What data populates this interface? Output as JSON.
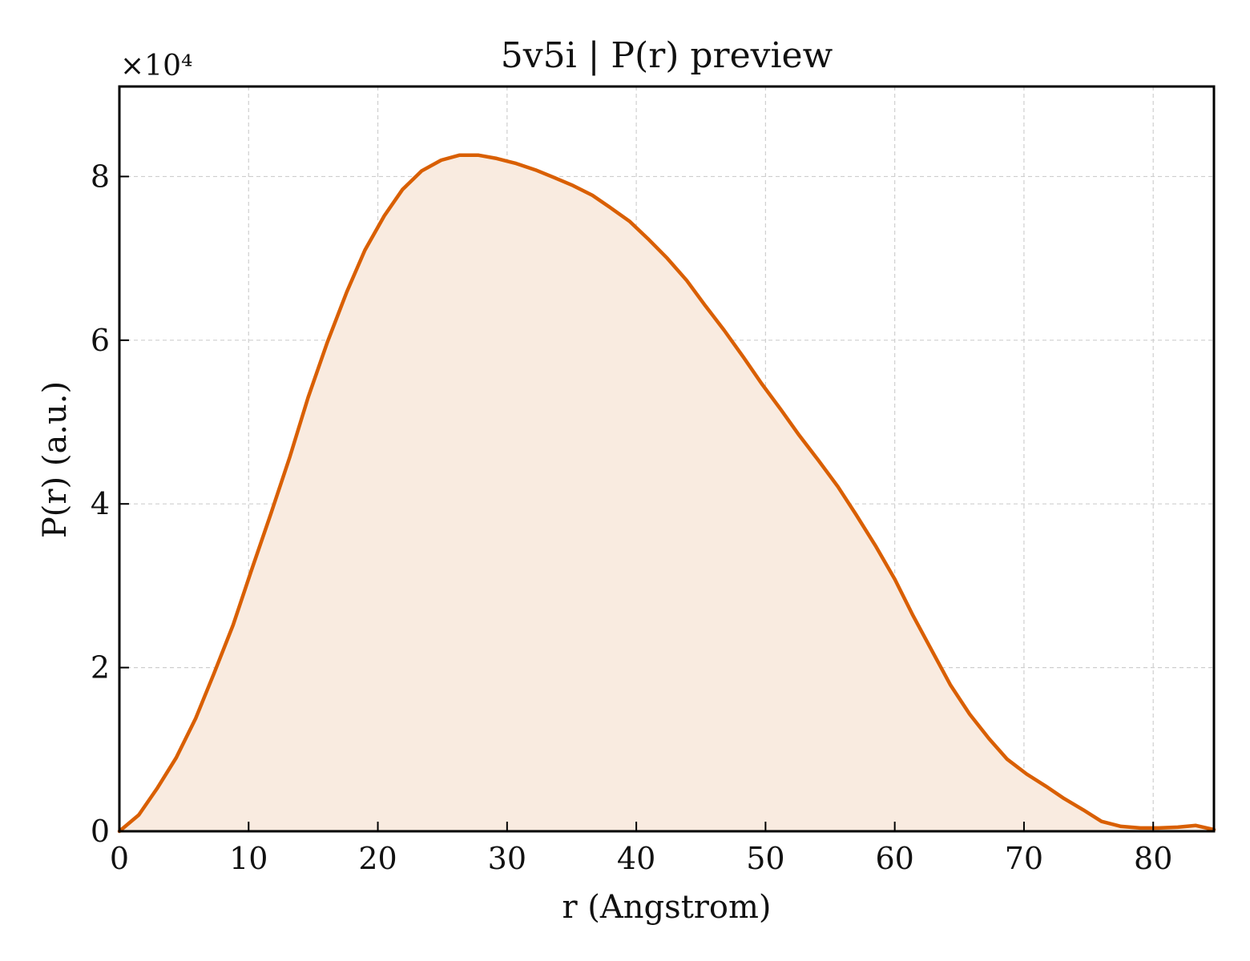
{
  "chart_data": {
    "type": "area",
    "title": "5v5i | P(r) preview",
    "xlabel": "r (Angstrom)",
    "ylabel": "P(r) (a.u.)",
    "y_multiplier_label": "×10⁴",
    "xlim": [
      0,
      84.7
    ],
    "ylim": [
      0,
      9.1
    ],
    "xticks": [
      0,
      10,
      20,
      30,
      40,
      50,
      60,
      70,
      80
    ],
    "yticks": [
      0,
      2,
      4,
      6,
      8
    ],
    "grid": true,
    "line_color": "#d95f02",
    "fill_color": "#f9ebe0",
    "x": [
      0,
      1.5,
      2.9,
      4.4,
      5.9,
      7.3,
      8.8,
      10.2,
      11.7,
      13.2,
      14.6,
      16.1,
      17.6,
      19.0,
      20.5,
      21.9,
      23.4,
      24.9,
      26.3,
      27.8,
      29.2,
      30.7,
      32.2,
      33.6,
      35.1,
      36.6,
      38.0,
      39.5,
      40.9,
      42.4,
      43.9,
      45.3,
      46.8,
      48.3,
      49.7,
      51.2,
      52.6,
      54.1,
      55.6,
      57.0,
      58.5,
      60.0,
      61.4,
      62.9,
      64.3,
      65.8,
      67.3,
      68.7,
      70.2,
      71.7,
      73.1,
      74.6,
      76.0,
      77.5,
      79.0,
      80.4,
      81.9,
      83.3,
      84.7
    ],
    "y": [
      0,
      0.2,
      0.52,
      0.9,
      1.38,
      1.92,
      2.52,
      3.18,
      3.87,
      4.58,
      5.3,
      5.98,
      6.59,
      7.1,
      7.52,
      7.84,
      8.07,
      8.2,
      8.26,
      8.26,
      8.22,
      8.16,
      8.08,
      7.99,
      7.89,
      7.77,
      7.62,
      7.45,
      7.24,
      7.0,
      6.73,
      6.43,
      6.12,
      5.79,
      5.47,
      5.15,
      4.84,
      4.53,
      4.21,
      3.87,
      3.49,
      3.08,
      2.64,
      2.2,
      1.79,
      1.43,
      1.13,
      0.88,
      0.7,
      0.55,
      0.4,
      0.26,
      0.12,
      0.06,
      0.04,
      0.04,
      0.05,
      0.07,
      0.02
    ]
  }
}
